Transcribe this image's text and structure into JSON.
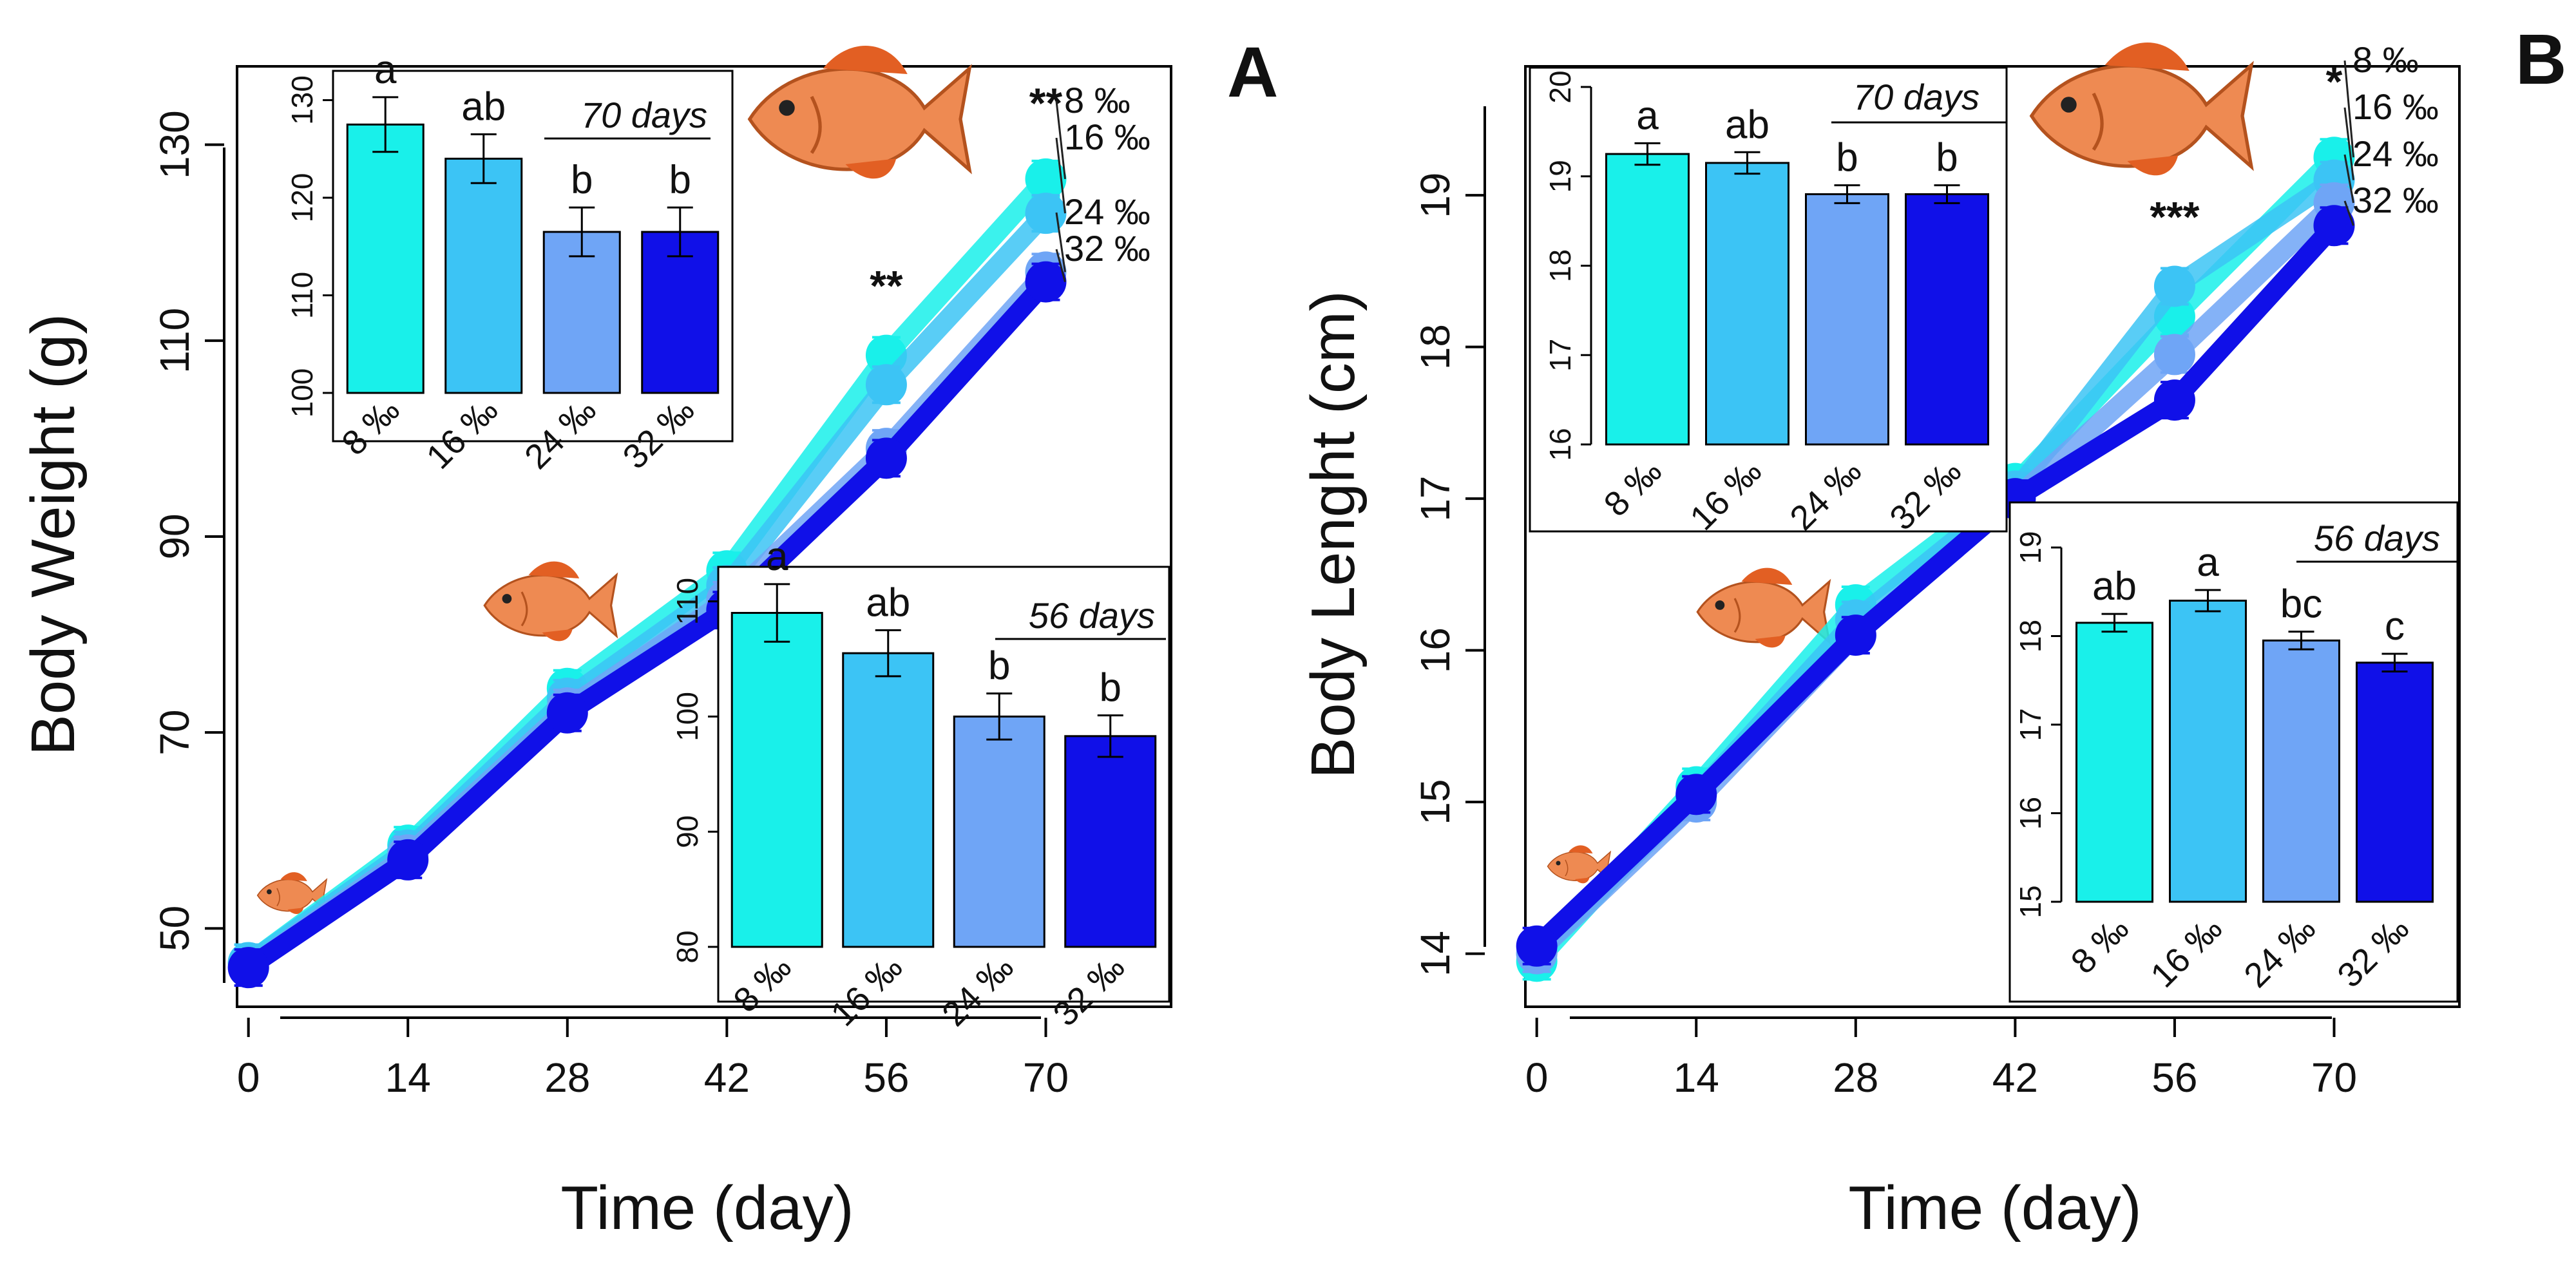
{
  "colors": {
    "s8": "#19f0ea",
    "s16": "#3cc4f5",
    "s24": "#6fa5f6",
    "s32": "#1010e8",
    "fish": "#ee8a52",
    "fish_fin": "#e25f23"
  },
  "icons": [
    "fish-icon"
  ],
  "chart_data": [
    {
      "panel": "A",
      "type": "line",
      "xlabel": "Time (day)",
      "ylabel": "Body Weight (g)",
      "x": [
        0,
        14,
        28,
        42,
        56,
        70
      ],
      "xticks": [
        "0",
        "14",
        "28",
        "42",
        "56",
        "70"
      ],
      "xlim": [
        -1,
        81
      ],
      "ylim": [
        42,
        138
      ],
      "yticks": [
        50,
        70,
        90,
        110,
        130
      ],
      "series": [
        {
          "name": "8 ‰",
          "color_key": "s8",
          "values": [
            46.5,
            58.5,
            74.5,
            86.5,
            108.5,
            126.5
          ]
        },
        {
          "name": "16 ‰",
          "color_key": "s16",
          "values": [
            46.5,
            58,
            73.5,
            85,
            105.5,
            123
          ]
        },
        {
          "name": "24 ‰",
          "color_key": "s24",
          "values": [
            46,
            57.5,
            72.5,
            83.5,
            99,
            117
          ]
        },
        {
          "name": "32 ‰",
          "color_key": "s32",
          "values": [
            46,
            57,
            72,
            82.5,
            98,
            116
          ]
        }
      ],
      "significance": [
        {
          "x": 56,
          "label": "**"
        },
        {
          "x": 70,
          "label": "**"
        }
      ],
      "insets": [
        {
          "type": "bar",
          "title": "70 days",
          "categories": [
            "8 ‰",
            "16 ‰",
            "24 ‰",
            "32 ‰"
          ],
          "values": [
            127.5,
            124,
            116.5,
            116.5
          ],
          "errors": [
            2.8,
            2.5,
            2.5,
            2.5
          ],
          "letters": [
            "a",
            "ab",
            "b",
            "b"
          ],
          "ylim": [
            100,
            133
          ],
          "yticks": [
            100,
            110,
            120,
            130
          ]
        },
        {
          "type": "bar",
          "title": "56 days",
          "categories": [
            "8 ‰",
            "16 ‰",
            "24 ‰",
            "32 ‰"
          ],
          "values": [
            109,
            105.5,
            100,
            98.3
          ],
          "errors": [
            2.5,
            2.0,
            2.0,
            1.8
          ],
          "letters": [
            "a",
            "ab",
            "b",
            "b"
          ],
          "ylim": [
            80,
            113
          ],
          "yticks": [
            80,
            90,
            100,
            110
          ]
        }
      ]
    },
    {
      "panel": "B",
      "type": "line",
      "xlabel": "Time (day)",
      "ylabel": "Body Lenght (cm)",
      "x": [
        0,
        14,
        28,
        42,
        56,
        70
      ],
      "xticks": [
        "0",
        "14",
        "28",
        "42",
        "56",
        "70"
      ],
      "xlim": [
        -1,
        81
      ],
      "ylim": [
        13.65,
        19.85
      ],
      "yticks": [
        14,
        15,
        16,
        17,
        18,
        19
      ],
      "series": [
        {
          "name": "8 ‰",
          "color_key": "s8",
          "values": [
            13.95,
            15.1,
            16.3,
            17.1,
            18.2,
            19.25
          ]
        },
        {
          "name": "16 ‰",
          "color_key": "s16",
          "values": [
            14.0,
            15.05,
            16.2,
            17.05,
            18.4,
            19.1
          ]
        },
        {
          "name": "24 ‰",
          "color_key": "s24",
          "values": [
            14.0,
            15.0,
            16.1,
            17.0,
            17.95,
            18.95
          ]
        },
        {
          "name": "32 ‰",
          "color_key": "s32",
          "values": [
            14.05,
            15.05,
            16.1,
            17.0,
            17.65,
            18.8
          ]
        }
      ],
      "significance": [
        {
          "x": 56,
          "label": "***"
        },
        {
          "x": 70,
          "label": "*"
        }
      ],
      "insets": [
        {
          "type": "bar",
          "title": "70 days",
          "categories": [
            "8 ‰",
            "16 ‰",
            "24 ‰",
            "32 ‰"
          ],
          "values": [
            19.25,
            19.15,
            18.8,
            18.8
          ],
          "errors": [
            0.12,
            0.12,
            0.1,
            0.1
          ],
          "letters": [
            "a",
            "ab",
            "b",
            "b"
          ],
          "ylim": [
            16,
            20
          ],
          "yticks": [
            16,
            17,
            18,
            19,
            20
          ]
        },
        {
          "type": "bar",
          "title": "56 days",
          "categories": [
            "8 ‰",
            "16 ‰",
            "24 ‰",
            "32 ‰"
          ],
          "values": [
            18.15,
            18.4,
            17.95,
            17.7
          ],
          "errors": [
            0.1,
            0.12,
            0.1,
            0.1
          ],
          "letters": [
            "ab",
            "a",
            "bc",
            "c"
          ],
          "ylim": [
            15,
            19
          ],
          "yticks": [
            15,
            16,
            17,
            18,
            19
          ]
        }
      ]
    }
  ]
}
